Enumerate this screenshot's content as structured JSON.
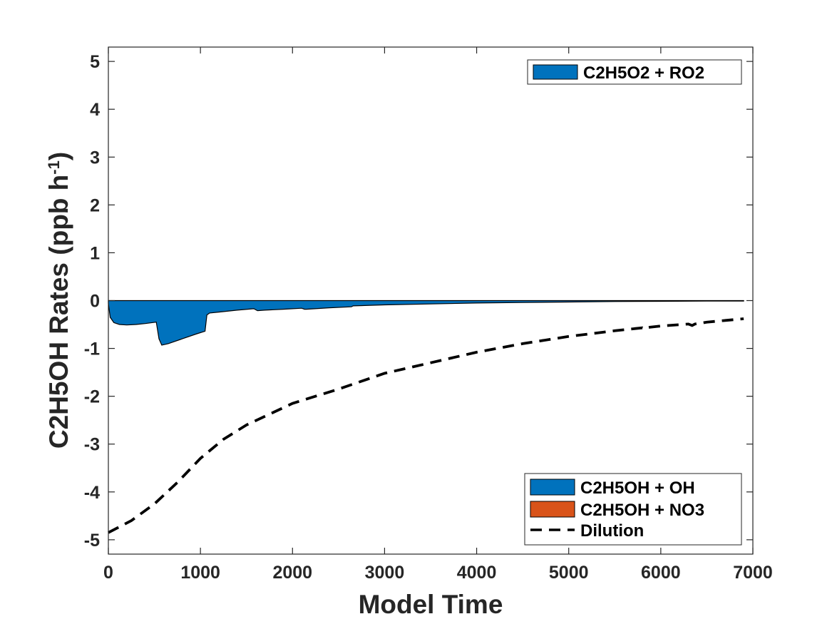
{
  "chart_data": {
    "type": "area",
    "xlabel": "Model Time",
    "ylabel": "C2H5OH Rates (ppb h",
    "ylabel_sup": "-1",
    "ylabel_end": ")",
    "xlim": [
      0,
      7000
    ],
    "ylim": [
      -5.3,
      5.3
    ],
    "xticks": [
      0,
      1000,
      2000,
      3000,
      4000,
      5000,
      6000,
      7000
    ],
    "yticks": [
      -5,
      -4,
      -3,
      -2,
      -1,
      0,
      1,
      2,
      3,
      4,
      5
    ],
    "grid": false,
    "series": [
      {
        "name": "C2H5O2 + RO2",
        "kind": "area",
        "color": "#0072BD",
        "x": [
          0,
          0,
          20,
          60,
          120,
          200,
          300,
          400,
          520,
          550,
          580,
          650,
          800,
          950,
          1050,
          1070,
          1100,
          1200,
          1400,
          1580,
          1620,
          1700,
          1900,
          2100,
          2130,
          2150,
          2400,
          2640,
          2660,
          3000,
          3500,
          4000,
          4500,
          5000,
          5500,
          6000,
          6500,
          6900
        ],
        "y": [
          0,
          -0.06,
          -0.35,
          -0.46,
          -0.5,
          -0.51,
          -0.5,
          -0.48,
          -0.45,
          -0.8,
          -0.93,
          -0.9,
          -0.8,
          -0.7,
          -0.64,
          -0.3,
          -0.26,
          -0.24,
          -0.2,
          -0.17,
          -0.21,
          -0.2,
          -0.18,
          -0.16,
          -0.18,
          -0.18,
          -0.15,
          -0.13,
          -0.11,
          -0.09,
          -0.07,
          -0.05,
          -0.04,
          -0.03,
          -0.02,
          -0.015,
          -0.01,
          -0.01
        ]
      },
      {
        "name": "Dilution",
        "kind": "line",
        "dash": true,
        "color": "#000000",
        "x": [
          0,
          250,
          500,
          750,
          1000,
          1250,
          1500,
          2000,
          2500,
          3000,
          3500,
          4000,
          4500,
          5000,
          5500,
          5800,
          5830,
          5860,
          6000,
          6300,
          6340,
          6370,
          6500,
          6900
        ],
        "y": [
          -4.85,
          -4.6,
          -4.25,
          -3.8,
          -3.3,
          -2.9,
          -2.6,
          -2.15,
          -1.85,
          -1.52,
          -1.3,
          -1.08,
          -0.9,
          -0.75,
          -0.63,
          -0.57,
          -0.6,
          -0.56,
          -0.53,
          -0.49,
          -0.52,
          -0.49,
          -0.45,
          -0.38
        ]
      }
    ],
    "legend_top": {
      "placement": "top-right",
      "entries": [
        {
          "label": "C2H5O2 + RO2",
          "color": "#0072BD",
          "kind": "patch"
        }
      ]
    },
    "legend_bottom": {
      "placement": "bottom-right",
      "entries": [
        {
          "label": "C2H5OH + OH",
          "color": "#0072BD",
          "kind": "patch"
        },
        {
          "label": "C2H5OH + NO3",
          "color": "#D95319",
          "kind": "patch"
        },
        {
          "label": "Dilution",
          "color": "#000000",
          "kind": "dashed-line"
        }
      ]
    }
  }
}
